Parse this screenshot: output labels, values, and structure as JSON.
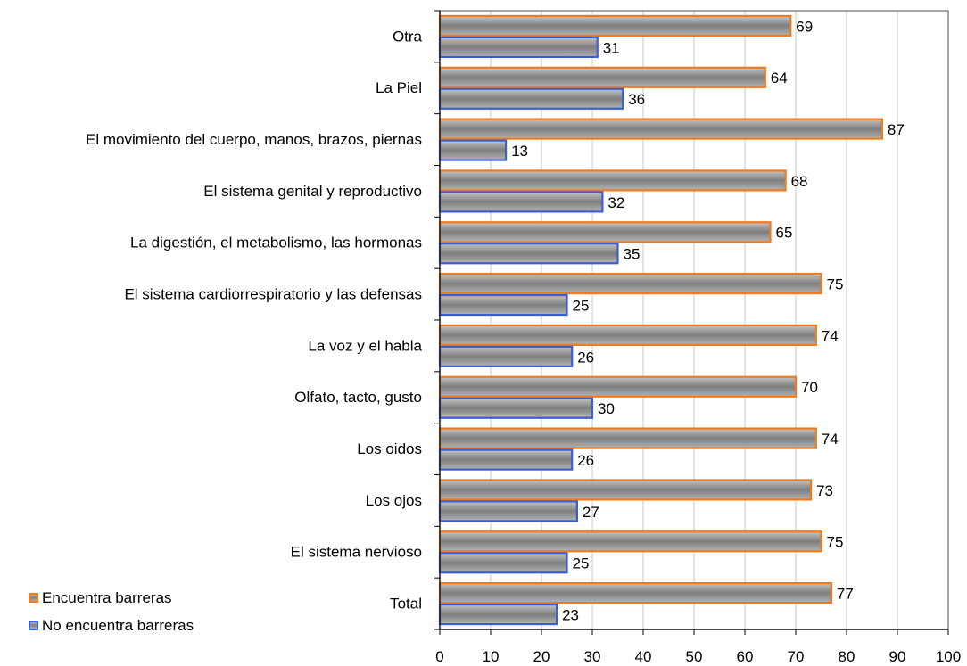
{
  "chart_data": {
    "type": "bar",
    "orientation": "horizontal",
    "categories": [
      "Otra",
      "La Piel",
      "El movimiento del cuerpo, manos, brazos, piernas",
      "El sistema genital y reproductivo",
      "La digestión, el metabolismo, las hormonas",
      "El sistema cardiorrespiratorio y las defensas",
      "La voz y el habla",
      "Olfato, tacto, gusto",
      "Los oidos",
      "Los ojos",
      "El sistema nervioso",
      "Total"
    ],
    "series": [
      {
        "name": "Encuentra barreras",
        "values": [
          69,
          64,
          87,
          68,
          65,
          75,
          74,
          70,
          74,
          73,
          75,
          77
        ],
        "border_color": "#f07a1e"
      },
      {
        "name": "No encuentra barreras",
        "values": [
          31,
          36,
          13,
          32,
          35,
          25,
          26,
          30,
          26,
          27,
          25,
          23
        ],
        "border_color": "#3a5fd0"
      }
    ],
    "xlim": [
      0,
      100
    ],
    "xticks": [
      "0",
      "10",
      "20",
      "30",
      "40",
      "50",
      "60",
      "70",
      "80",
      "90",
      "100"
    ],
    "grid": true,
    "legend_position": "bottom-left",
    "bar_fill": "#9a9a9a"
  }
}
